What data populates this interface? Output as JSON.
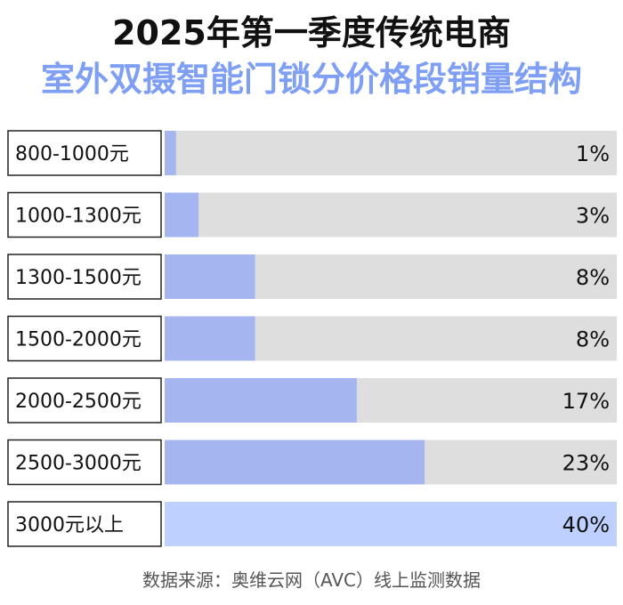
{
  "header": {
    "title": "2025年第一季度传统电商",
    "subtitle": "室外双摄智能门锁分价格段销量结构"
  },
  "colors": {
    "title": "#111111",
    "subtitle": "#7f9ff5",
    "track": "#dedede",
    "bar": "#a4b5ef",
    "bar_last": "#bdd0ff",
    "label_box_border": "#222222"
  },
  "chart_data": {
    "type": "bar",
    "orientation": "horizontal",
    "categories": [
      "800-1000元",
      "1000-1300元",
      "1300-1500元",
      "1500-2000元",
      "2000-2500元",
      "2500-3000元",
      "3000元以上"
    ],
    "values": [
      1,
      3,
      8,
      8,
      17,
      23,
      40
    ],
    "value_labels": [
      "1%",
      "3%",
      "8%",
      "8%",
      "17%",
      "23%",
      "40%"
    ],
    "xlim": [
      0,
      40
    ],
    "grid": false,
    "legend": "none"
  },
  "footer": {
    "source": "数据来源：奥维云网（AVC）线上监测数据"
  }
}
